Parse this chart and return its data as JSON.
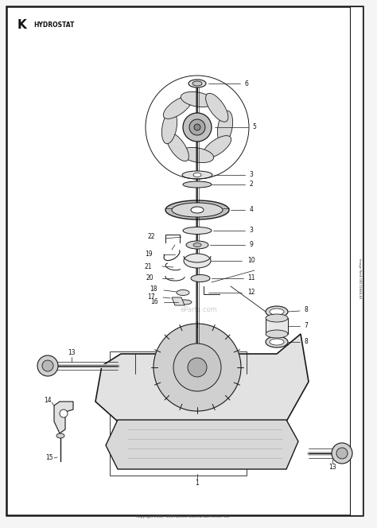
{
  "bg_color": "#f5f5f5",
  "page_bg": "#ffffff",
  "line_color": "#1a1a1a",
  "text_color": "#111111",
  "gray_fill": "#cccccc",
  "light_gray": "#e8e8e8",
  "mid_gray": "#aaaaaa",
  "title_letter": "K",
  "title_text": "HYDROSTAT",
  "footer_text": "Copyright 2004 - 2019 Ariens Material Aid Center, Inc.",
  "side_text": "Image Ref# 00572848-83",
  "watermark": "eParts.com"
}
